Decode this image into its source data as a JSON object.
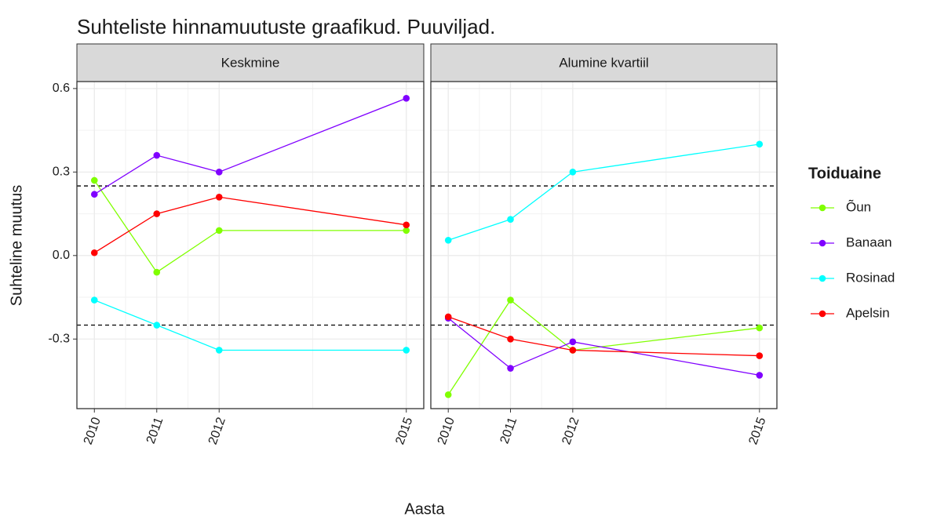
{
  "title": "Suhteliste hinnamuutuste graafikud. Puuviljad.",
  "x_label": "Aasta",
  "y_label": "Suhteline muutus",
  "legend_title": "Toiduaine",
  "chart_data": [
    {
      "type": "line",
      "title": "Keskmine",
      "x": [
        2010,
        2011,
        2012,
        2015
      ],
      "xlim": [
        2009.72,
        2015.28
      ],
      "xticks": [
        2010,
        2011,
        2012,
        2015
      ],
      "ylim": [
        -0.55,
        0.625
      ],
      "yticks": [
        -0.3,
        {
          "value": 0,
          "label": "0.0"
        },
        0.3,
        0.6
      ],
      "hlines": [
        0.25,
        -0.25
      ],
      "grid": true,
      "series": [
        {
          "name": "Õun",
          "color": "#80ff00",
          "values": [
            0.27,
            -0.06,
            0.09,
            0.09
          ]
        },
        {
          "name": "Banaan",
          "color": "#8000ff",
          "values": [
            0.22,
            0.36,
            0.3,
            0.565
          ]
        },
        {
          "name": "Rosinad",
          "color": "#00ffff",
          "values": [
            -0.16,
            -0.25,
            -0.34,
            -0.34
          ]
        },
        {
          "name": "Apelsin",
          "color": "#ff0000",
          "values": [
            0.01,
            0.15,
            0.21,
            0.11
          ]
        }
      ]
    },
    {
      "type": "line",
      "title": "Alumine kvartiil",
      "x": [
        2010,
        2011,
        2012,
        2015
      ],
      "xlim": [
        2009.72,
        2015.28
      ],
      "xticks": [
        2010,
        2011,
        2012,
        2015
      ],
      "ylim": [
        -0.55,
        0.625
      ],
      "yticks": [
        -0.3,
        {
          "value": 0,
          "label": "0.0"
        },
        0.3,
        0.6
      ],
      "hlines": [
        0.25,
        -0.25
      ],
      "grid": true,
      "series": [
        {
          "name": "Õun",
          "color": "#80ff00",
          "values": [
            -0.5,
            -0.16,
            -0.34,
            -0.26
          ]
        },
        {
          "name": "Banaan",
          "color": "#8000ff",
          "values": [
            -0.225,
            -0.405,
            -0.31,
            -0.43
          ]
        },
        {
          "name": "Rosinad",
          "color": "#00ffff",
          "values": [
            0.055,
            0.13,
            0.3,
            0.4
          ]
        },
        {
          "name": "Apelsin",
          "color": "#ff0000",
          "values": [
            -0.22,
            -0.3,
            -0.34,
            -0.36
          ]
        }
      ]
    }
  ]
}
